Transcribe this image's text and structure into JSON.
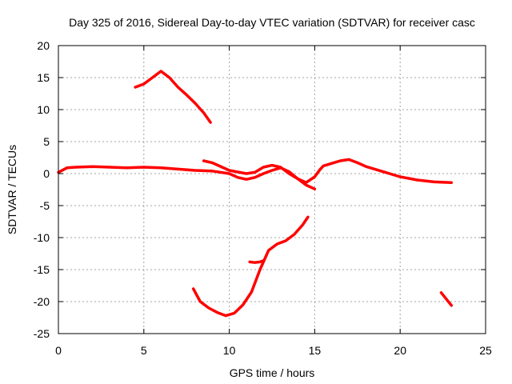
{
  "chart_data": {
    "type": "line",
    "title": "Day 325 of 2016, Sidereal Day-to-day VTEC variation (SDTVAR) for receiver casc",
    "xlabel": "GPS time / hours",
    "ylabel": "SDTVAR / TECUs",
    "xlim": [
      0,
      25
    ],
    "ylim": [
      -25,
      20
    ],
    "xticks": [
      0,
      5,
      10,
      15,
      20,
      25
    ],
    "yticks": [
      -25,
      -20,
      -15,
      -10,
      -5,
      0,
      5,
      10,
      15,
      20
    ],
    "grid": true,
    "color": "#ff0000",
    "series": [
      {
        "name": "seg1",
        "x": [
          4.5,
          5,
          5.5,
          6,
          6.5,
          7,
          7.5,
          8,
          8.5,
          8.9
        ],
        "y": [
          13.5,
          14.0,
          15.0,
          16.0,
          15.0,
          13.5,
          12.3,
          11.0,
          9.5,
          8.0
        ]
      },
      {
        "name": "seg2",
        "x": [
          0,
          0.5,
          1,
          2,
          3,
          4,
          5,
          6,
          7,
          8,
          9,
          10,
          10.5,
          11,
          11.5,
          12,
          12.5,
          13,
          13.5,
          14,
          14.5,
          15
        ],
        "y": [
          0.2,
          0.9,
          1.0,
          1.1,
          1.0,
          0.9,
          1.0,
          0.9,
          0.7,
          0.5,
          0.4,
          0.0,
          -0.6,
          -0.9,
          -0.6,
          0.0,
          0.5,
          0.9,
          0.3,
          -0.8,
          -1.8,
          -2.4
        ]
      },
      {
        "name": "seg3",
        "x": [
          8.5,
          9,
          10,
          11,
          11.5,
          12,
          12.5,
          13,
          13.5,
          14,
          14.5,
          15,
          15.3,
          15.5,
          16,
          16.5,
          17,
          17.5,
          18,
          19,
          20,
          21,
          22,
          23
        ],
        "y": [
          2.0,
          1.7,
          0.5,
          0.0,
          0.2,
          1.0,
          1.3,
          1.0,
          0.0,
          -0.8,
          -1.4,
          -0.5,
          0.6,
          1.2,
          1.6,
          2.0,
          2.2,
          1.7,
          1.1,
          0.3,
          -0.5,
          -1.0,
          -1.3,
          -1.4
        ]
      },
      {
        "name": "seg4",
        "x": [
          7.9,
          8.3,
          8.8,
          9.3,
          9.8,
          10.3,
          10.8,
          11.3,
          11.8,
          12.3,
          12.8,
          13.3,
          13.8,
          14.3,
          14.6
        ],
        "y": [
          -18.0,
          -20.0,
          -21.0,
          -21.7,
          -22.2,
          -21.8,
          -20.5,
          -18.5,
          -15.0,
          -12.0,
          -11.0,
          -10.5,
          -9.5,
          -8.0,
          -6.8
        ]
      },
      {
        "name": "seg5",
        "x": [
          11.2,
          11.5,
          11.8,
          12.0
        ],
        "y": [
          -13.8,
          -13.9,
          -13.8,
          -13.6
        ]
      },
      {
        "name": "seg6",
        "x": [
          22.4,
          22.7,
          23.0
        ],
        "y": [
          -18.6,
          -19.6,
          -20.6
        ]
      }
    ]
  }
}
